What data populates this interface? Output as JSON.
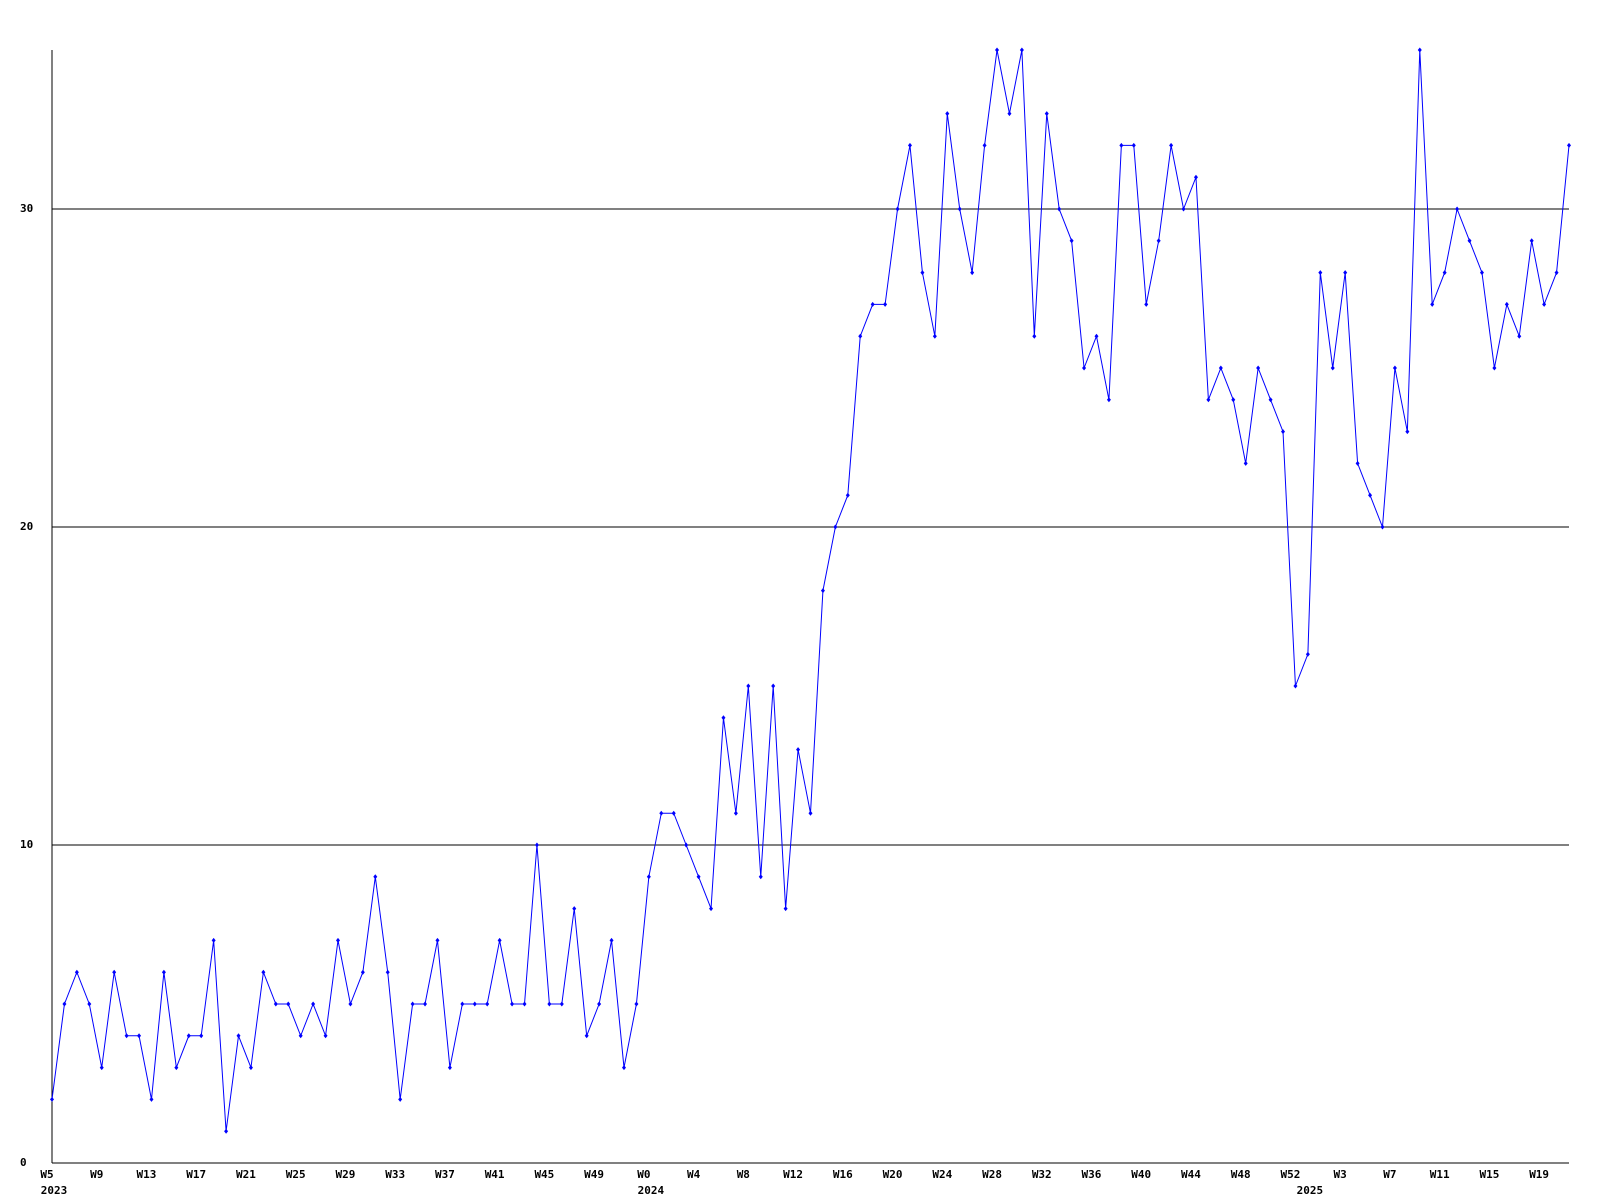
{
  "chart_data": {
    "type": "line",
    "categories": [
      "W5",
      null,
      null,
      null,
      "W9",
      null,
      null,
      null,
      "W13",
      null,
      null,
      null,
      "W17",
      null,
      null,
      null,
      "W21",
      null,
      null,
      null,
      "W25",
      null,
      null,
      null,
      "W29",
      null,
      null,
      null,
      "W33",
      null,
      null,
      null,
      "W37",
      null,
      null,
      null,
      "W41",
      null,
      null,
      null,
      "W45",
      null,
      null,
      null,
      "W49",
      null,
      null,
      null,
      "W0",
      null,
      null,
      null,
      "W4",
      null,
      null,
      null,
      "W8",
      null,
      null,
      null,
      "W12",
      null,
      null,
      null,
      "W16",
      null,
      null,
      null,
      "W20",
      null,
      null,
      null,
      "W24",
      null,
      null,
      null,
      "W28",
      null,
      null,
      null,
      "W32",
      null,
      null,
      null,
      "W36",
      null,
      null,
      null,
      "W40",
      null,
      null,
      null,
      "W44",
      null,
      null,
      null,
      "W48",
      null,
      null,
      null,
      "W52",
      null,
      null,
      null,
      "W3",
      null,
      null,
      null,
      "W7",
      null,
      null,
      null,
      "W11",
      null,
      null,
      null,
      "W15",
      null,
      null,
      null,
      "W19",
      null,
      null
    ],
    "years": [
      "2023",
      null,
      null,
      null,
      null,
      null,
      null,
      null,
      null,
      null,
      null,
      null,
      null,
      null,
      null,
      null,
      null,
      null,
      null,
      null,
      null,
      null,
      null,
      null,
      null,
      null,
      null,
      null,
      null,
      null,
      null,
      null,
      null,
      null,
      null,
      null,
      null,
      null,
      null,
      null,
      null,
      null,
      null,
      null,
      null,
      null,
      null,
      null,
      "2024",
      null,
      null,
      null,
      null,
      null,
      null,
      null,
      null,
      null,
      null,
      null,
      null,
      null,
      null,
      null,
      null,
      null,
      null,
      null,
      null,
      null,
      null,
      null,
      null,
      null,
      null,
      null,
      null,
      null,
      null,
      null,
      null,
      null,
      null,
      null,
      null,
      null,
      null,
      null,
      null,
      null,
      null,
      null,
      null,
      null,
      null,
      null,
      null,
      null,
      null,
      null,
      null,
      "2025",
      null,
      null,
      null,
      null,
      null,
      null,
      null,
      null,
      null,
      null,
      null,
      null,
      null,
      null,
      null,
      null,
      null,
      null,
      null,
      null,
      null
    ],
    "series": [
      {
        "color": "#0000ff",
        "values": [
          2,
          5,
          6,
          5,
          3,
          6,
          4,
          4,
          2,
          6,
          3,
          4,
          4,
          7,
          1,
          4,
          3,
          6,
          5,
          5,
          4,
          5,
          4,
          7,
          5,
          6,
          9,
          6,
          2,
          5,
          5,
          7,
          3,
          5,
          5,
          5,
          7,
          5,
          5,
          10,
          5,
          5,
          8,
          4,
          5,
          7,
          3,
          5,
          9,
          11,
          11,
          10,
          9,
          8,
          14,
          11,
          15,
          9,
          15,
          8,
          13,
          11,
          18,
          20,
          21,
          26,
          27,
          27,
          30,
          32,
          28,
          26,
          33,
          30,
          28,
          32,
          35,
          33,
          35,
          26,
          33,
          30,
          29,
          25,
          26,
          24,
          32,
          32,
          27,
          29,
          32,
          30,
          31,
          24,
          25,
          24,
          22,
          25,
          24,
          23,
          15,
          16,
          28,
          25,
          28,
          22,
          21,
          20,
          25,
          23,
          35,
          27,
          28,
          30,
          29,
          28,
          25,
          27,
          26,
          29,
          27,
          28,
          32
        ]
      }
    ],
    "ylim": [
      0,
      35
    ],
    "yticks": [
      0,
      10,
      20,
      30
    ],
    "grid": true
  }
}
